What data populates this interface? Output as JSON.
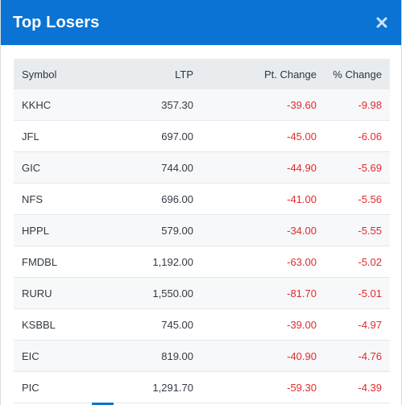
{
  "modal": {
    "title": "Top Losers",
    "close_icon": "close-icon",
    "header_color": "#0a73d4",
    "negative_color": "#e02b2b"
  },
  "table": {
    "headers": {
      "symbol": "Symbol",
      "ltp": "LTP",
      "pt_change": "Pt. Change",
      "pct_change": "% Change"
    },
    "rows": [
      {
        "symbol": "KKHC",
        "ltp": "357.30",
        "pt_change": "-39.60",
        "pct_change": "-9.98"
      },
      {
        "symbol": "JFL",
        "ltp": "697.00",
        "pt_change": "-45.00",
        "pct_change": "-6.06"
      },
      {
        "symbol": "GIC",
        "ltp": "744.00",
        "pt_change": "-44.90",
        "pct_change": "-5.69"
      },
      {
        "symbol": "NFS",
        "ltp": "696.00",
        "pt_change": "-41.00",
        "pct_change": "-5.56"
      },
      {
        "symbol": "HPPL",
        "ltp": "579.00",
        "pt_change": "-34.00",
        "pct_change": "-5.55"
      },
      {
        "symbol": "FMDBL",
        "ltp": "1,192.00",
        "pt_change": "-63.00",
        "pct_change": "-5.02"
      },
      {
        "symbol": "RURU",
        "ltp": "1,550.00",
        "pt_change": "-81.70",
        "pct_change": "-5.01"
      },
      {
        "symbol": "KSBBL",
        "ltp": "745.00",
        "pt_change": "-39.00",
        "pct_change": "-4.97"
      },
      {
        "symbol": "EIC",
        "ltp": "819.00",
        "pt_change": "-40.90",
        "pct_change": "-4.76"
      },
      {
        "symbol": "PIC",
        "ltp": "1,291.70",
        "pt_change": "-59.30",
        "pct_change": "-4.39"
      }
    ]
  }
}
